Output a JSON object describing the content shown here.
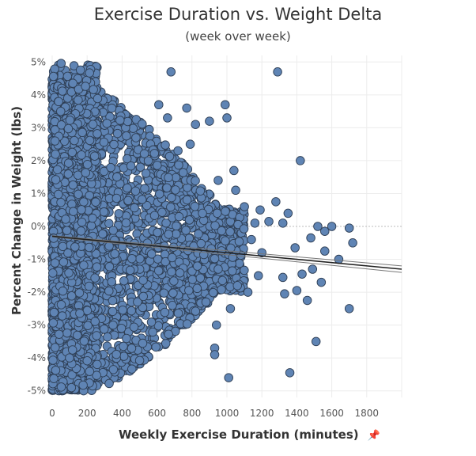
{
  "chart_data": {
    "type": "scatter",
    "title": "Exercise Duration vs. Weight Delta",
    "subtitle": "(week over week)",
    "xlabel": "Weekly Exercise Duration (minutes)",
    "ylabel": "Percent Change in Weight (lbs)",
    "xlim": [
      0,
      2000
    ],
    "ylim": [
      -5.2,
      5.2
    ],
    "x_ticks": [
      "0",
      "200",
      "400",
      "600",
      "800",
      "1000",
      "1200",
      "1400",
      "1600",
      "1800"
    ],
    "y_ticks": [
      "5%",
      "4%",
      "3%",
      "2%",
      "1%",
      "0%",
      "-1%",
      "-2%",
      "-3%",
      "-4%",
      "-5%"
    ],
    "grid": true,
    "marker_color": "#5f84b4",
    "marker_edge": "#2f3f55",
    "trend_line": {
      "x": [
        0,
        2000
      ],
      "y": [
        -0.3,
        -1.3
      ]
    },
    "confidence_band": {
      "upper": [
        -0.28,
        -1.2
      ],
      "lower": [
        -0.32,
        -1.4
      ]
    },
    "points": [
      {
        "x": 1290,
        "y": 4.7
      },
      {
        "x": 680,
        "y": 4.7
      },
      {
        "x": 1420,
        "y": 2.0
      },
      {
        "x": 1510,
        "y": -3.5
      },
      {
        "x": 1700,
        "y": -2.5
      },
      {
        "x": 1010,
        "y": -4.6
      },
      {
        "x": 1360,
        "y": -4.45
      },
      {
        "x": 1700,
        "y": -0.05
      },
      {
        "x": 1720,
        "y": -0.5
      },
      {
        "x": 1600,
        "y": 0.0
      },
      {
        "x": 1520,
        "y": 0.0
      },
      {
        "x": 1560,
        "y": -0.15
      },
      {
        "x": 1480,
        "y": -0.35
      },
      {
        "x": 1560,
        "y": -0.75
      },
      {
        "x": 1640,
        "y": -1.0
      },
      {
        "x": 1540,
        "y": -1.7
      },
      {
        "x": 1490,
        "y": -1.3
      },
      {
        "x": 1430,
        "y": -1.45
      },
      {
        "x": 1400,
        "y": -1.95
      },
      {
        "x": 1460,
        "y": -2.25
      },
      {
        "x": 1390,
        "y": -0.65
      },
      {
        "x": 1320,
        "y": -1.55
      },
      {
        "x": 1330,
        "y": -2.05
      },
      {
        "x": 1350,
        "y": 0.4
      },
      {
        "x": 1280,
        "y": 0.75
      },
      {
        "x": 1320,
        "y": 0.1
      },
      {
        "x": 1240,
        "y": 0.15
      },
      {
        "x": 1190,
        "y": 0.5
      },
      {
        "x": 1160,
        "y": 0.1
      },
      {
        "x": 1100,
        "y": 0.6
      },
      {
        "x": 1050,
        "y": 1.1
      },
      {
        "x": 1140,
        "y": -0.4
      },
      {
        "x": 1200,
        "y": -0.8
      },
      {
        "x": 1180,
        "y": -1.5
      },
      {
        "x": 1120,
        "y": -2.0
      },
      {
        "x": 1060,
        "y": -1.8
      },
      {
        "x": 990,
        "y": 3.7
      },
      {
        "x": 1000,
        "y": 3.3
      },
      {
        "x": 900,
        "y": 3.2
      },
      {
        "x": 1040,
        "y": 1.7
      },
      {
        "x": 950,
        "y": 1.4
      },
      {
        "x": 1020,
        "y": -2.5
      },
      {
        "x": 940,
        "y": -3.0
      },
      {
        "x": 930,
        "y": -3.7
      },
      {
        "x": 930,
        "y": -3.9
      },
      {
        "x": 950,
        "y": -1.3
      },
      {
        "x": 880,
        "y": -2.3
      },
      {
        "x": 860,
        "y": 0.4
      },
      {
        "x": 820,
        "y": 3.1
      },
      {
        "x": 790,
        "y": 2.5
      },
      {
        "x": 770,
        "y": 3.6
      },
      {
        "x": 610,
        "y": 3.7
      },
      {
        "x": 660,
        "y": 3.3
      },
      {
        "x": 720,
        "y": 2.3
      }
    ],
    "dense_cloud": {
      "xlim": [
        0,
        1100
      ],
      "count": 2800
    }
  }
}
